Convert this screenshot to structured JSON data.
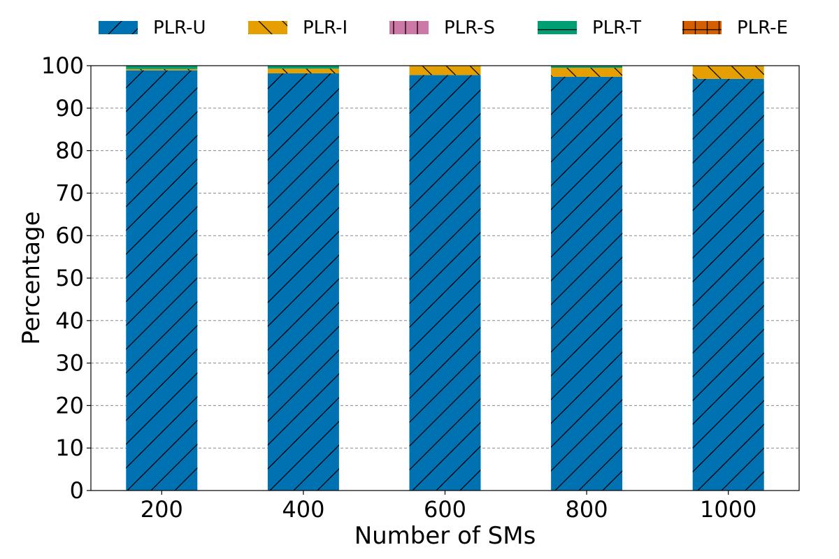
{
  "chart_data": {
    "type": "bar",
    "stacked": true,
    "title": "",
    "xlabel": "Number of SMs",
    "ylabel": "Percentage",
    "categories": [
      "200",
      "400",
      "600",
      "800",
      "1000"
    ],
    "ylim": [
      0,
      100
    ],
    "yticks": [
      0,
      10,
      20,
      30,
      40,
      50,
      60,
      70,
      80,
      90,
      100
    ],
    "grid": "y-dashed",
    "legend_position": "top",
    "series": [
      {
        "name": "PLR-U",
        "color": "#0072B2",
        "hatch": "forward-slash",
        "values": [
          98.9,
          98.2,
          97.8,
          97.4,
          96.9
        ]
      },
      {
        "name": "PLR-I",
        "color": "#E69F00",
        "hatch": "back-slash",
        "values": [
          0.3,
          1.1,
          2.1,
          2.1,
          3.0
        ]
      },
      {
        "name": "PLR-S",
        "color": "#CC79A7",
        "hatch": "vertical",
        "values": [
          0.0,
          0.0,
          0.0,
          0.0,
          0.0
        ]
      },
      {
        "name": "PLR-T",
        "color": "#009E73",
        "hatch": "horizontal",
        "values": [
          0.8,
          0.7,
          0.1,
          0.5,
          0.1
        ]
      },
      {
        "name": "PLR-E",
        "color": "#D55E00",
        "hatch": "cross",
        "values": [
          0.0,
          0.0,
          0.0,
          0.0,
          0.0
        ]
      }
    ]
  }
}
